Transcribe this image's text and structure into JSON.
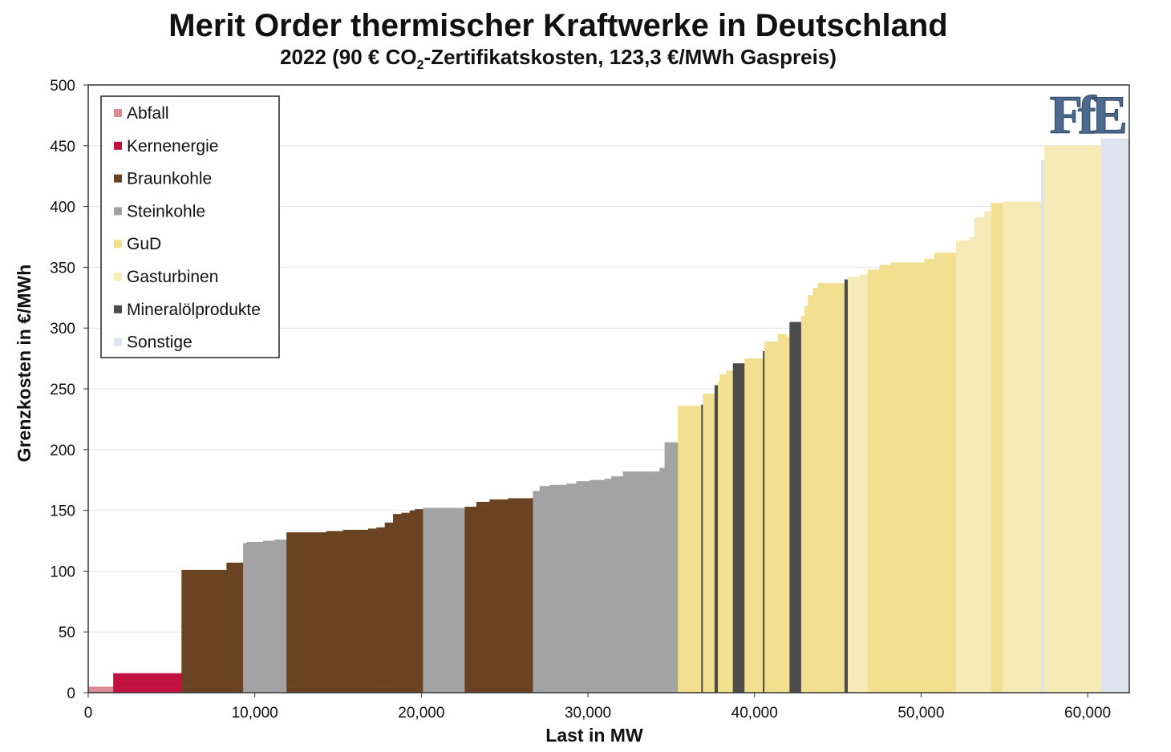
{
  "chart_data": {
    "type": "area",
    "title": "Merit Order thermischer Kraftwerke in Deutschland",
    "subtitle": {
      "before": "2022 (90 € CO",
      "subscript": "2",
      "after": "-Zertifikatskosten, 123,3 €/MWh Gaspreis)"
    },
    "xlabel": "Last in MW",
    "ylabel": "Grenzkosten in €/MWh",
    "xlim": [
      0,
      62500
    ],
    "ylim": [
      0,
      500
    ],
    "x_ticks": [
      0,
      10000,
      20000,
      30000,
      40000,
      50000,
      60000
    ],
    "x_tick_labels": [
      "0",
      "10,000",
      "20,000",
      "30,000",
      "40,000",
      "50,000",
      "60,000"
    ],
    "y_ticks": [
      0,
      50,
      100,
      150,
      200,
      250,
      300,
      350,
      400,
      450,
      500
    ],
    "y_tick_labels": [
      "0",
      "50",
      "100",
      "150",
      "200",
      "250",
      "300",
      "350",
      "400",
      "450",
      "500"
    ],
    "grid": "horizontal",
    "legend_position": "top-left",
    "logo": "FfE",
    "categories": [
      {
        "key": "abfall",
        "name": "Abfall",
        "color": "#d98c94"
      },
      {
        "key": "kern",
        "name": "Kernenergie",
        "color": "#c2103f"
      },
      {
        "key": "braun",
        "name": "Braunkohle",
        "color": "#6a4322"
      },
      {
        "key": "stein",
        "name": "Steinkohle",
        "color": "#a3a3a3"
      },
      {
        "key": "gud",
        "name": "GuD",
        "color": "#f2df8f"
      },
      {
        "key": "gasturb",
        "name": "Gasturbinen",
        "color": "#f6ebb7"
      },
      {
        "key": "oel",
        "name": "Mineralölprodukte",
        "color": "#4d4d4d"
      },
      {
        "key": "sonst",
        "name": "Sonstige",
        "color": "#dde3ef"
      }
    ],
    "steps": [
      {
        "x0": 0,
        "x1": 1500,
        "y": 5,
        "type": "abfall"
      },
      {
        "x0": 1500,
        "x1": 5600,
        "y": 16,
        "type": "kern"
      },
      {
        "x0": 5600,
        "x1": 8300,
        "y": 101,
        "type": "braun"
      },
      {
        "x0": 8300,
        "x1": 9300,
        "y": 107,
        "type": "braun"
      },
      {
        "x0": 9300,
        "x1": 9500,
        "y": 123,
        "type": "stein"
      },
      {
        "x0": 9500,
        "x1": 10500,
        "y": 124,
        "type": "stein"
      },
      {
        "x0": 10500,
        "x1": 11200,
        "y": 125,
        "type": "stein"
      },
      {
        "x0": 11200,
        "x1": 11900,
        "y": 126,
        "type": "stein"
      },
      {
        "x0": 11900,
        "x1": 14300,
        "y": 132,
        "type": "braun"
      },
      {
        "x0": 14300,
        "x1": 15300,
        "y": 133,
        "type": "braun"
      },
      {
        "x0": 15300,
        "x1": 16800,
        "y": 134,
        "type": "braun"
      },
      {
        "x0": 16800,
        "x1": 17300,
        "y": 135,
        "type": "braun"
      },
      {
        "x0": 17300,
        "x1": 17800,
        "y": 136,
        "type": "braun"
      },
      {
        "x0": 17800,
        "x1": 18300,
        "y": 140,
        "type": "braun"
      },
      {
        "x0": 18300,
        "x1": 18800,
        "y": 147,
        "type": "braun"
      },
      {
        "x0": 18800,
        "x1": 19300,
        "y": 148,
        "type": "braun"
      },
      {
        "x0": 19300,
        "x1": 19600,
        "y": 150,
        "type": "braun"
      },
      {
        "x0": 19600,
        "x1": 20100,
        "y": 151,
        "type": "braun"
      },
      {
        "x0": 20100,
        "x1": 22600,
        "y": 152,
        "type": "stein"
      },
      {
        "x0": 22600,
        "x1": 23300,
        "y": 153,
        "type": "braun"
      },
      {
        "x0": 23300,
        "x1": 24100,
        "y": 157,
        "type": "braun"
      },
      {
        "x0": 24100,
        "x1": 25200,
        "y": 159,
        "type": "braun"
      },
      {
        "x0": 25200,
        "x1": 26700,
        "y": 160,
        "type": "braun"
      },
      {
        "x0": 26700,
        "x1": 27100,
        "y": 166,
        "type": "stein"
      },
      {
        "x0": 27100,
        "x1": 27700,
        "y": 170,
        "type": "stein"
      },
      {
        "x0": 27700,
        "x1": 28700,
        "y": 171,
        "type": "stein"
      },
      {
        "x0": 28700,
        "x1": 29300,
        "y": 172,
        "type": "stein"
      },
      {
        "x0": 29300,
        "x1": 30100,
        "y": 174,
        "type": "stein"
      },
      {
        "x0": 30100,
        "x1": 31000,
        "y": 175,
        "type": "stein"
      },
      {
        "x0": 31000,
        "x1": 31400,
        "y": 176,
        "type": "stein"
      },
      {
        "x0": 31400,
        "x1": 32100,
        "y": 178,
        "type": "stein"
      },
      {
        "x0": 32100,
        "x1": 34300,
        "y": 182,
        "type": "stein"
      },
      {
        "x0": 34300,
        "x1": 34600,
        "y": 185,
        "type": "stein"
      },
      {
        "x0": 34600,
        "x1": 35400,
        "y": 206,
        "type": "stein"
      },
      {
        "x0": 35400,
        "x1": 36800,
        "y": 236,
        "type": "gud"
      },
      {
        "x0": 36800,
        "x1": 36900,
        "y": 237,
        "type": "oel"
      },
      {
        "x0": 36900,
        "x1": 37600,
        "y": 246,
        "type": "gud"
      },
      {
        "x0": 37600,
        "x1": 37800,
        "y": 253,
        "type": "oel"
      },
      {
        "x0": 37800,
        "x1": 37900,
        "y": 256,
        "type": "gud"
      },
      {
        "x0": 37900,
        "x1": 38300,
        "y": 262,
        "type": "gud"
      },
      {
        "x0": 38300,
        "x1": 38700,
        "y": 265,
        "type": "gud"
      },
      {
        "x0": 38700,
        "x1": 39400,
        "y": 271,
        "type": "oel"
      },
      {
        "x0": 39400,
        "x1": 40500,
        "y": 275,
        "type": "gud"
      },
      {
        "x0": 40500,
        "x1": 40600,
        "y": 281,
        "type": "oel"
      },
      {
        "x0": 40600,
        "x1": 41400,
        "y": 289,
        "type": "gud"
      },
      {
        "x0": 41400,
        "x1": 41900,
        "y": 295,
        "type": "gud"
      },
      {
        "x0": 41900,
        "x1": 42100,
        "y": 293,
        "type": "gud"
      },
      {
        "x0": 42100,
        "x1": 42800,
        "y": 305,
        "type": "oel"
      },
      {
        "x0": 42800,
        "x1": 43000,
        "y": 310,
        "type": "gud"
      },
      {
        "x0": 43000,
        "x1": 43200,
        "y": 318,
        "type": "gud"
      },
      {
        "x0": 43200,
        "x1": 43500,
        "y": 327,
        "type": "gud"
      },
      {
        "x0": 43500,
        "x1": 43800,
        "y": 333,
        "type": "gud"
      },
      {
        "x0": 43800,
        "x1": 45400,
        "y": 337,
        "type": "gud"
      },
      {
        "x0": 45400,
        "x1": 45600,
        "y": 340,
        "type": "oel"
      },
      {
        "x0": 45600,
        "x1": 46300,
        "y": 342,
        "type": "gasturb"
      },
      {
        "x0": 46300,
        "x1": 46800,
        "y": 344,
        "type": "gasturb"
      },
      {
        "x0": 46800,
        "x1": 47500,
        "y": 348,
        "type": "gud"
      },
      {
        "x0": 47500,
        "x1": 48200,
        "y": 352,
        "type": "gud"
      },
      {
        "x0": 48200,
        "x1": 50200,
        "y": 354,
        "type": "gud"
      },
      {
        "x0": 50200,
        "x1": 50800,
        "y": 357,
        "type": "gud"
      },
      {
        "x0": 50800,
        "x1": 52100,
        "y": 362,
        "type": "gud"
      },
      {
        "x0": 52100,
        "x1": 52900,
        "y": 372,
        "type": "gasturb"
      },
      {
        "x0": 52900,
        "x1": 53200,
        "y": 375,
        "type": "gasturb"
      },
      {
        "x0": 53200,
        "x1": 53800,
        "y": 391,
        "type": "gasturb"
      },
      {
        "x0": 53800,
        "x1": 54200,
        "y": 396,
        "type": "gasturb"
      },
      {
        "x0": 54200,
        "x1": 54900,
        "y": 403,
        "type": "gud"
      },
      {
        "x0": 54900,
        "x1": 57200,
        "y": 404,
        "type": "gasturb"
      },
      {
        "x0": 57200,
        "x1": 57400,
        "y": 438,
        "type": "sonst"
      },
      {
        "x0": 57400,
        "x1": 60800,
        "y": 450,
        "type": "gasturb"
      },
      {
        "x0": 60800,
        "x1": 62500,
        "y": 456,
        "type": "sonst"
      }
    ]
  }
}
